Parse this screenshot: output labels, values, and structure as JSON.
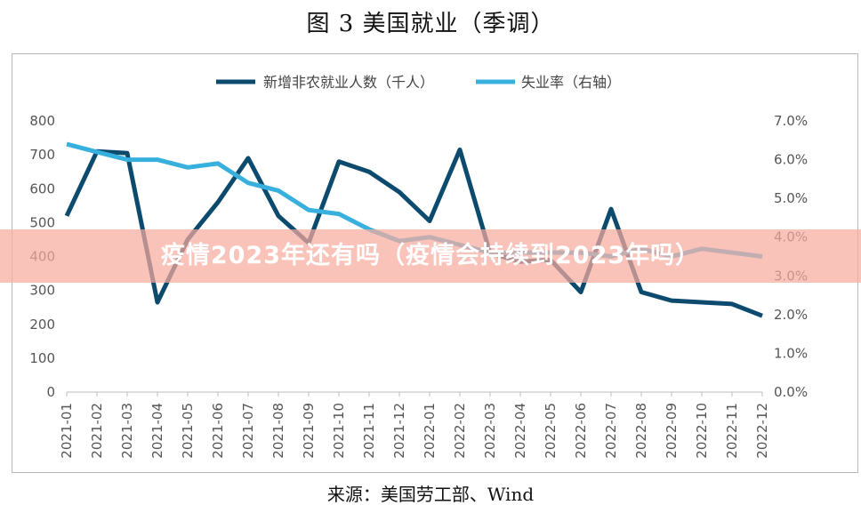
{
  "page": {
    "title": "图 3  美国就业（季调）",
    "source": "来源：美国劳工部、Wind",
    "overlay_banner": "疫情2023年还有吗（疫情会持续到2023年吗）"
  },
  "chart_data": {
    "type": "line",
    "categories": [
      "2021-01",
      "2021-02",
      "2021-03",
      "2021-04",
      "2021-05",
      "2021-06",
      "2021-07",
      "2021-08",
      "2021-09",
      "2021-10",
      "2021-11",
      "2021-12",
      "2022-01",
      "2022-02",
      "2022-03",
      "2022-04",
      "2022-05",
      "2022-06",
      "2022-07",
      "2022-08",
      "2022-09",
      "2022-10",
      "2022-11",
      "2022-12"
    ],
    "series": [
      {
        "name": "新增非农就业人数（千人）",
        "axis": "left",
        "color": "#0c4a6e",
        "values": [
          520,
          710,
          705,
          265,
          450,
          560,
          690,
          520,
          440,
          680,
          650,
          590,
          505,
          715,
          410,
          385,
          390,
          295,
          540,
          295,
          270,
          265,
          260,
          225
        ]
      },
      {
        "name": "失业率（右轴）",
        "axis": "right",
        "color": "#38b0dd",
        "values": [
          6.4,
          6.2,
          6.0,
          6.0,
          5.8,
          5.9,
          5.4,
          5.2,
          4.7,
          4.6,
          4.2,
          3.9,
          4.0,
          3.8,
          3.6,
          3.6,
          3.6,
          3.6,
          3.5,
          3.7,
          3.5,
          3.7,
          3.6,
          3.5
        ]
      }
    ],
    "y_left": {
      "min": 0,
      "max": 800,
      "step": 100,
      "ticks": [
        "0",
        "100",
        "200",
        "300",
        "400",
        "500",
        "600",
        "700",
        "800"
      ]
    },
    "y_right": {
      "min": 0,
      "max": 7.0,
      "step": 1.0,
      "ticks": [
        "0.0%",
        "1.0%",
        "2.0%",
        "3.0%",
        "4.0%",
        "5.0%",
        "6.0%",
        "7.0%"
      ]
    },
    "legend_position": "top-center",
    "grid": false
  }
}
